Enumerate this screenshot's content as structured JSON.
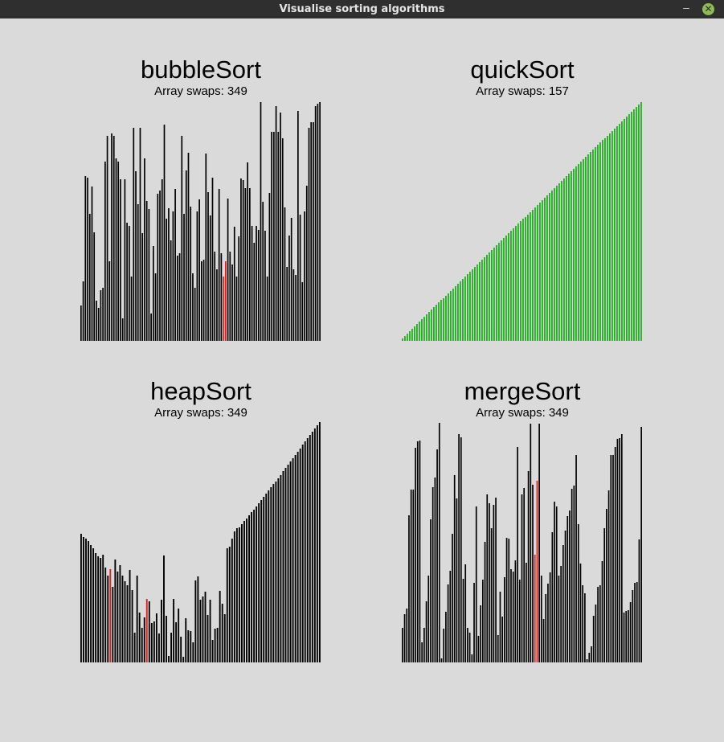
{
  "window": {
    "title": "Visualise sorting algorithms",
    "minimize_glyph": "–",
    "close_glyph": "✕"
  },
  "swap_label": "Array swaps:",
  "panels": [
    {
      "title": "bubbleSort",
      "swaps": "349",
      "bar_color": "#000000",
      "highlight_color": "#e02020",
      "highlight": [
        65,
        66
      ],
      "values": [
        44,
        74,
        205,
        203,
        158,
        192,
        135,
        50,
        41,
        63,
        66,
        223,
        255,
        99,
        258,
        255,
        227,
        223,
        201,
        28,
        201,
        147,
        143,
        80,
        265,
        211,
        170,
        265,
        134,
        227,
        174,
        164,
        34,
        118,
        84,
        183,
        187,
        201,
        269,
        152,
        165,
        125,
        161,
        189,
        106,
        109,
        255,
        158,
        212,
        234,
        167,
        84,
        66,
        161,
        176,
        99,
        101,
        233,
        185,
        156,
        203,
        111,
        89,
        189,
        109,
        80,
        99,
        177,
        111,
        95,
        142,
        80,
        130,
        202,
        200,
        190,
        222,
        190,
        143,
        122,
        143,
        138,
        297,
        173,
        137,
        80,
        184,
        260,
        260,
        292,
        260,
        284,
        252,
        166,
        92,
        131,
        153,
        89,
        82,
        286,
        157,
        73,
        161,
        193,
        265,
        272,
        272,
        292,
        295,
        297
      ]
    },
    {
      "title": "quickSort",
      "swaps": "157",
      "bar_color": "#1fb31f",
      "highlight_color": "#1fb31f",
      "highlight": [],
      "values": "ascending"
    },
    {
      "title": "heapSort",
      "swaps": "349",
      "bar_color": "#000000",
      "highlight_color": "#e02020",
      "highlight": [
        12,
        27
      ],
      "values": [
        160,
        156,
        154,
        151,
        146,
        142,
        136,
        132,
        130,
        134,
        118,
        108,
        116,
        94,
        128,
        113,
        121,
        108,
        101,
        96,
        115,
        90,
        37,
        108,
        62,
        43,
        56,
        79,
        76,
        49,
        51,
        61,
        36,
        78,
        133,
        58,
        8,
        37,
        79,
        50,
        67,
        32,
        7,
        55,
        40,
        39,
        25,
        102,
        107,
        78,
        82,
        88,
        59,
        78,
        28,
        42,
        43,
        89,
        73,
        60,
        142,
        144,
        154,
        163,
        167,
        168,
        172,
        176,
        179,
        183,
        187,
        190,
        194,
        198,
        202,
        206,
        210,
        214,
        218,
        222,
        225,
        229,
        233,
        238,
        242,
        246,
        250,
        254,
        258,
        262,
        266,
        271,
        275,
        279,
        283,
        287,
        291,
        295,
        299
      ]
    },
    {
      "title": "mergeSort",
      "swaps": "349",
      "bar_color": "#000000",
      "highlight_color": "#e02020",
      "highlight": [
        61,
        62
      ],
      "values": [
        43,
        60,
        67,
        183,
        215,
        215,
        267,
        275,
        276,
        25,
        43,
        76,
        108,
        178,
        218,
        230,
        265,
        298,
        5,
        42,
        63,
        97,
        114,
        160,
        233,
        204,
        284,
        280,
        104,
        122,
        43,
        37,
        10,
        99,
        194,
        33,
        71,
        103,
        150,
        209,
        198,
        167,
        196,
        205,
        34,
        88,
        57,
        106,
        155,
        154,
        116,
        113,
        127,
        268,
        103,
        209,
        217,
        124,
        238,
        297,
        221,
        134,
        226,
        297,
        108,
        54,
        85,
        98,
        112,
        162,
        200,
        194,
        108,
        120,
        146,
        164,
        182,
        189,
        216,
        220,
        258,
        172,
        123,
        96,
        86,
        4,
        12,
        20,
        58,
        72,
        94,
        96,
        126,
        167,
        191,
        214,
        258,
        258,
        268,
        278,
        279,
        284,
        62,
        64,
        65,
        75,
        90,
        99,
        100,
        153,
        293
      ]
    }
  ]
}
